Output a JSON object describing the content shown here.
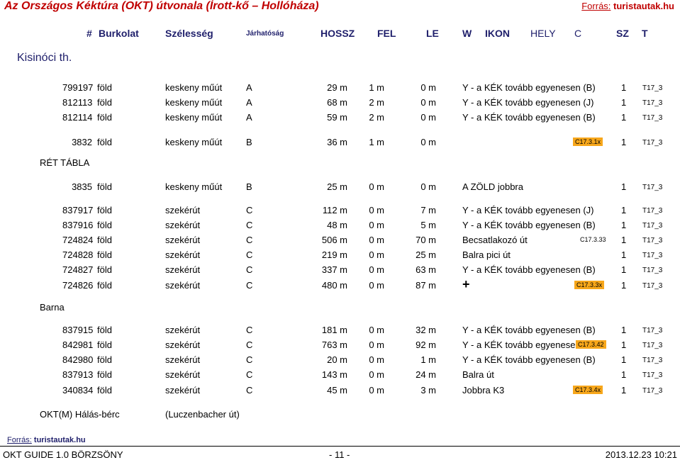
{
  "title": "Az Országos Kéktúra (OKT) útvonala (Írott-kő – Hollóháza)",
  "source_top": {
    "label": "Forrás:",
    "value": "turistautak.hu"
  },
  "header": {
    "num": "#",
    "surface": "Burkolat",
    "width": "Szélesség",
    "passability": "Járhatóság",
    "length": "HOSSZ",
    "up": "FEL",
    "down": "LE",
    "w": "W",
    "icon": "IKON",
    "place": "HELY",
    "c": "C",
    "sz": "SZ",
    "t": "T"
  },
  "places": {
    "start": "Kisinóci th.",
    "ret_tabla": "RÉT TÁBLA",
    "barna": "Barna",
    "end_name": "OKT(M) Hálás-bérc",
    "end_note": "(Luczenbacher út)"
  },
  "rows": [
    {
      "id": "799197",
      "surface": "föld",
      "width": "keskeny műút",
      "pass": "A",
      "len": "29 m",
      "up": "1 m",
      "down": "0 m",
      "dir": "Y - a KÉK tovább egyenesen (B)",
      "badge": "",
      "one": "1",
      "code": "T17_3"
    },
    {
      "id": "812113",
      "surface": "föld",
      "width": "keskeny műút",
      "pass": "A",
      "len": "68 m",
      "up": "2 m",
      "down": "0 m",
      "dir": "Y - a KÉK tovább egyenesen (J)",
      "badge": "",
      "one": "1",
      "code": "T17_3"
    },
    {
      "id": "812114",
      "surface": "föld",
      "width": "keskeny műút",
      "pass": "A",
      "len": "59 m",
      "up": "2 m",
      "down": "0 m",
      "dir": "Y - a KÉK tovább egyenesen (B)",
      "badge": "",
      "one": "1",
      "code": "T17_3"
    },
    {
      "id": "3832",
      "surface": "föld",
      "width": "keskeny műút",
      "pass": "B",
      "len": "36 m",
      "up": "1 m",
      "down": "0 m",
      "dir": "",
      "badge": "C17.3.1x",
      "one": "1",
      "code": "T17_3"
    },
    {
      "id": "3835",
      "surface": "föld",
      "width": "keskeny műút",
      "pass": "B",
      "len": "25 m",
      "up": "0 m",
      "down": "0 m",
      "dir": "A ZÖLD jobbra",
      "badge": "",
      "one": "1",
      "code": "T17_3"
    },
    {
      "id": "837917",
      "surface": "föld",
      "width": "szekérút",
      "pass": "C",
      "len": "112 m",
      "up": "0 m",
      "down": "7 m",
      "dir": "Y - a KÉK tovább egyenesen (J)",
      "badge": "",
      "one": "1",
      "code": "T17_3"
    },
    {
      "id": "837916",
      "surface": "föld",
      "width": "szekérút",
      "pass": "C",
      "len": "48 m",
      "up": "0 m",
      "down": "5 m",
      "dir": "Y - a KÉK tovább egyenesen (B)",
      "badge": "",
      "one": "1",
      "code": "T17_3"
    },
    {
      "id": "724824",
      "surface": "föld",
      "width": "szekérút",
      "pass": "C",
      "len": "506 m",
      "up": "0 m",
      "down": "70 m",
      "dir": "Becsatlakozó út",
      "badge": "C17.3.33",
      "one": "1",
      "code": "T17_3"
    },
    {
      "id": "724828",
      "surface": "föld",
      "width": "szekérút",
      "pass": "C",
      "len": "219 m",
      "up": "0 m",
      "down": "25 m",
      "dir": "Balra pici út",
      "badge": "",
      "one": "1",
      "code": "T17_3"
    },
    {
      "id": "724827",
      "surface": "föld",
      "width": "szekérút",
      "pass": "C",
      "len": "337 m",
      "up": "0 m",
      "down": "63 m",
      "dir": "Y - a KÉK tovább egyenesen (B)",
      "badge": "",
      "one": "1",
      "code": "T17_3"
    },
    {
      "id": "724826",
      "surface": "föld",
      "width": "szekérút",
      "pass": "C",
      "len": "480 m",
      "up": "0 m",
      "down": "87 m",
      "dir": "+",
      "badge": "C17.3.3x",
      "one": "1",
      "code": "T17_3"
    },
    {
      "id": "837915",
      "surface": "föld",
      "width": "szekérút",
      "pass": "C",
      "len": "181 m",
      "up": "0 m",
      "down": "32 m",
      "dir": "Y - a KÉK tovább egyenesen (B)",
      "badge": "",
      "one": "1",
      "code": "T17_3"
    },
    {
      "id": "842981",
      "surface": "föld",
      "width": "szekérút",
      "pass": "C",
      "len": "763 m",
      "up": "0 m",
      "down": "92 m",
      "dir": "Y - a KÉK tovább egyenesen",
      "badge": "C17.3.42",
      "one": "1",
      "code": "T17_3"
    },
    {
      "id": "842980",
      "surface": "föld",
      "width": "szekérút",
      "pass": "C",
      "len": "20 m",
      "up": "0 m",
      "down": "1 m",
      "dir": "Y - a KÉK tovább egyenesen (B)",
      "badge": "",
      "one": "1",
      "code": "T17_3"
    },
    {
      "id": "837913",
      "surface": "föld",
      "width": "szekérút",
      "pass": "C",
      "len": "143 m",
      "up": "0 m",
      "down": "24 m",
      "dir": "Balra út",
      "badge": "",
      "one": "1",
      "code": "T17_3"
    },
    {
      "id": "340834",
      "surface": "föld",
      "width": "szekérút",
      "pass": "C",
      "len": "45 m",
      "up": "0 m",
      "down": "3 m",
      "dir": "Jobbra K3",
      "badge": "C17.3.4x",
      "one": "1",
      "code": "T17_3"
    }
  ],
  "footer_source": {
    "label": "Forrás:",
    "value": "turistautak.hu"
  },
  "footer": {
    "guide": "OKT GUIDE 1.0  BÖRZSÖNY",
    "page": "- 11 -",
    "date": "2013.12.23  10:21"
  }
}
